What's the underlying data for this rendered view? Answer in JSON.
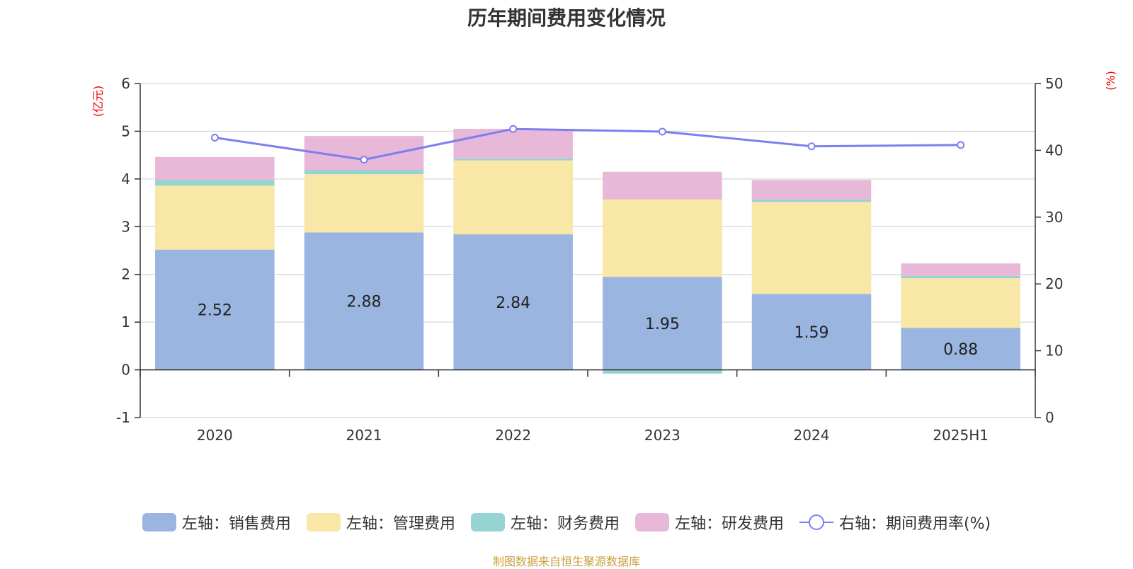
{
  "chart_data": {
    "type": "bar",
    "title": "历年期间费用变化情况",
    "categories": [
      "2020",
      "2021",
      "2022",
      "2023",
      "2024",
      "2025H1"
    ],
    "left_axis": {
      "unit": "(亿元)",
      "ylim": [
        -1,
        6
      ],
      "ticks": [
        -1,
        0,
        1,
        2,
        3,
        4,
        5,
        6
      ]
    },
    "right_axis": {
      "unit": "(%)",
      "ylim": [
        0,
        50
      ],
      "ticks": [
        0,
        10,
        20,
        30,
        40,
        50
      ]
    },
    "grid": true,
    "stacked": true,
    "series": [
      {
        "name": "左轴：销售费用",
        "type": "bar",
        "axis": "left",
        "color": "#9ab6e0",
        "values": [
          2.52,
          2.88,
          2.84,
          1.95,
          1.59,
          0.88
        ],
        "show_labels": true
      },
      {
        "name": "左轴：管理费用",
        "type": "bar",
        "axis": "left",
        "color": "#f8e7a6",
        "values": [
          1.34,
          1.22,
          1.55,
          1.62,
          1.93,
          1.04
        ],
        "show_labels": false
      },
      {
        "name": "左轴：财务费用",
        "type": "bar",
        "axis": "left",
        "color": "#96d3d3",
        "values": [
          0.12,
          0.09,
          0.04,
          -0.08,
          0.05,
          0.05
        ],
        "show_labels": false
      },
      {
        "name": "左轴：研发费用",
        "type": "bar",
        "axis": "left",
        "color": "#e8b8d8",
        "values": [
          0.48,
          0.71,
          0.62,
          0.58,
          0.41,
          0.26
        ],
        "show_labels": false
      },
      {
        "name": "右轴：期间费用率(%)",
        "type": "line",
        "axis": "right",
        "color": "#7b7ff0",
        "values": [
          41.9,
          38.6,
          43.2,
          42.8,
          40.6,
          40.8
        ]
      }
    ],
    "legend_position": "bottom",
    "source": "制图数据来自恒生聚源数据库"
  }
}
